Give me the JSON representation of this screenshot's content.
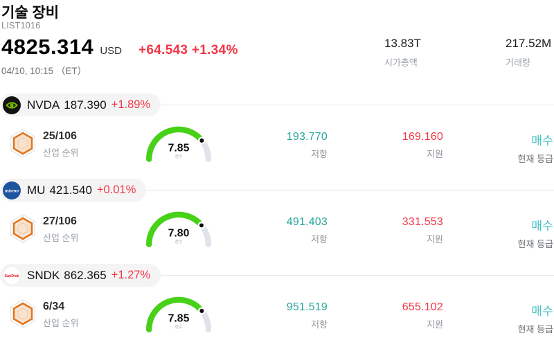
{
  "header": {
    "title": "기술 장비",
    "list_id": "LIST1016",
    "price": "4825.314",
    "currency": "USD",
    "change": "+64.543 +1.34%",
    "datetime": "04/10, 10:15 （ET）",
    "market_cap_value": "13.83T",
    "market_cap_label": "시가총액",
    "volume_value": "217.52M",
    "volume_label": "거래량"
  },
  "labels": {
    "rank": "산업 순위",
    "score": "점수",
    "resistance": "저항",
    "support": "지원",
    "rating": "현재 등급"
  },
  "colors": {
    "up_down_red": "#f23645",
    "resistance_teal": "#26a69a",
    "rating_cyan": "#47c1c4",
    "gauge_green": "#47d117",
    "gauge_track": "#e1e3ea",
    "pill_bg": "#f4f4f5",
    "badge_orange": "#e0761f",
    "nvidia_green": "#76b900",
    "micron_blue": "#1e549e",
    "sandisk_red": "#e31e2d"
  },
  "stocks": [
    {
      "ticker": "NVDA",
      "price": "187.390",
      "change_pct": "+1.89%",
      "rank": "25/106",
      "score": 7.85,
      "score_display": "7.85",
      "resistance": "193.770",
      "support": "169.160",
      "rating": "매수",
      "logo_text": ""
    },
    {
      "ticker": "MU",
      "price": "421.540",
      "change_pct": "+0.01%",
      "rank": "27/106",
      "score": 7.8,
      "score_display": "7.80",
      "resistance": "491.403",
      "support": "331.553",
      "rating": "매수",
      "logo_text": "micron"
    },
    {
      "ticker": "SNDK",
      "price": "862.365",
      "change_pct": "+1.27%",
      "rank": "6/34",
      "score": 7.85,
      "score_display": "7.85",
      "resistance": "951.519",
      "support": "655.102",
      "rating": "매수",
      "logo_text": "SanDisk"
    }
  ]
}
